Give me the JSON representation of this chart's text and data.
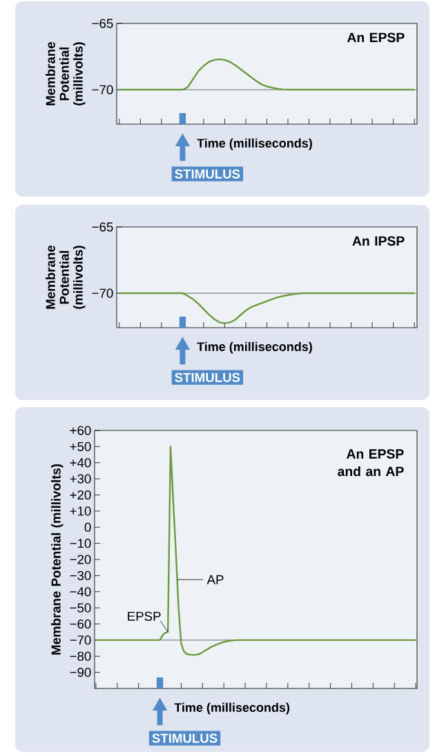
{
  "chart_data": [
    {
      "type": "line",
      "title": "An EPSP",
      "xlabel": "Time (milliseconds)",
      "ylabel": "Membrane Potential (millivolts)",
      "categories": [
        null,
        null,
        null,
        null,
        null,
        null,
        null,
        null,
        null,
        null,
        null,
        null,
        null,
        null,
        null,
        null,
        null,
        null,
        null,
        null,
        null,
        null,
        null,
        null,
        null,
        null,
        null,
        null,
        null,
        null,
        null,
        null,
        null,
        null,
        null,
        null,
        null,
        null,
        null,
        null,
        null,
        null,
        null,
        null,
        null,
        null,
        null,
        null,
        null,
        null,
        null,
        null,
        null,
        null,
        null,
        null,
        null
      ],
      "series": [
        {
          "color": "#6c9a3d",
          "values": [
            -70,
            -70,
            -70,
            -70,
            -70,
            -70,
            -70,
            -70,
            -70,
            -70,
            -70,
            -70,
            -70,
            -69.8,
            -69.2,
            -68.6,
            -68.2,
            -67.9,
            -67.75,
            -67.7,
            -67.75,
            -67.9,
            -68.15,
            -68.45,
            -68.75,
            -69.05,
            -69.35,
            -69.6,
            -69.75,
            -69.85,
            -69.93,
            -69.98,
            -70,
            -70,
            -70,
            -70,
            -70,
            -70,
            -70,
            -70,
            -70,
            -70,
            -70,
            -70,
            -70,
            -70,
            -70,
            -70,
            -70,
            -70,
            -70,
            -70,
            -70,
            -70,
            -70,
            -70,
            -70
          ]
        }
      ],
      "ylim": [
        -72.6,
        -65
      ],
      "yticks": [
        {
          "value": -65,
          "label": "−65"
        },
        {
          "value": -70,
          "label": "−70"
        }
      ],
      "ref_lines": [
        {
          "axis": "y",
          "value": -70,
          "color": "#444444"
        }
      ],
      "tick_labels": "y",
      "annotations": [
        "STIMULUS"
      ]
    },
    {
      "type": "line",
      "title": "An IPSP",
      "xlabel": "Time (milliseconds)",
      "ylabel": "Membrane Potential (millivolts)",
      "categories": [
        null,
        null,
        null,
        null,
        null,
        null,
        null,
        null,
        null,
        null,
        null,
        null,
        null,
        null,
        null,
        null,
        null,
        null,
        null,
        null,
        null,
        null,
        null,
        null,
        null,
        null,
        null,
        null,
        null,
        null,
        null,
        null,
        null,
        null,
        null,
        null,
        null,
        null,
        null,
        null,
        null,
        null,
        null,
        null,
        null,
        null,
        null,
        null,
        null,
        null,
        null,
        null,
        null,
        null,
        null,
        null,
        null
      ],
      "series": [
        {
          "color": "#6c9a3d",
          "values": [
            -70,
            -70,
            -70,
            -70,
            -70,
            -70,
            -70,
            -70,
            -70,
            -70,
            -70,
            -70,
            -70,
            -70.2,
            -70.45,
            -70.8,
            -71.2,
            -71.6,
            -71.95,
            -72.2,
            -72.27,
            -72.2,
            -72.0,
            -71.65,
            -71.3,
            -71.05,
            -70.9,
            -70.75,
            -70.6,
            -70.45,
            -70.32,
            -70.22,
            -70.14,
            -70.08,
            -70.03,
            -70,
            -70,
            -70,
            -70,
            -70,
            -70,
            -70,
            -70,
            -70,
            -70,
            -70,
            -70,
            -70,
            -70,
            -70,
            -70,
            -70,
            -70,
            -70,
            -70,
            -70,
            -70
          ]
        }
      ],
      "ylim": [
        -72.6,
        -65
      ],
      "yticks": [
        {
          "value": -65,
          "label": "−65"
        },
        {
          "value": -70,
          "label": "−70"
        }
      ],
      "ref_lines": [
        {
          "axis": "y",
          "value": -70,
          "color": "#444444"
        }
      ],
      "tick_labels": "y",
      "annotations": [
        "STIMULUS"
      ]
    },
    {
      "type": "line",
      "title": "An EPSP and an AP",
      "xlabel": "Time (milliseconds)",
      "ylabel": "Membrane Potential (millivolts)",
      "categories": [
        null,
        null,
        null,
        null,
        null,
        null,
        null,
        null,
        null,
        null,
        null,
        null,
        null,
        null,
        null,
        null,
        null,
        null,
        null,
        null,
        null,
        null,
        null,
        null,
        null,
        null,
        null,
        null,
        null,
        null,
        null,
        null,
        null,
        null,
        null,
        null,
        null,
        null,
        null,
        null,
        null,
        null,
        null,
        null,
        null,
        null,
        null,
        null,
        null,
        null,
        null,
        null,
        null,
        null,
        null,
        null,
        null,
        null,
        null,
        null,
        null,
        null,
        null,
        null,
        null,
        null,
        null,
        null,
        null,
        null,
        null,
        null,
        null,
        null,
        null,
        null,
        null,
        null,
        null,
        null,
        null,
        null,
        null,
        null,
        null,
        null,
        null,
        null,
        null,
        null,
        null,
        null,
        null,
        null,
        null,
        null,
        null,
        null,
        null,
        null,
        null,
        null,
        null,
        null,
        null,
        null,
        null,
        null,
        null,
        null,
        null,
        null,
        null,
        null,
        null,
        null,
        null,
        null,
        null,
        null,
        null
      ],
      "series": [
        {
          "color": "#6c9a3d",
          "values": [
            -70,
            -70,
            -70,
            -70,
            -70,
            -70,
            -70,
            -70,
            -70,
            -70,
            -70,
            -70,
            -70,
            -70,
            -70,
            -70,
            -70,
            -70,
            -70,
            -70,
            -70,
            -70,
            -70,
            -70,
            -70,
            -67,
            -65.5,
            -65,
            50,
            16,
            -15,
            -50,
            -72,
            -77,
            -78.5,
            -79,
            -79.2,
            -79.2,
            -79,
            -78.5,
            -77.5,
            -76.5,
            -75.5,
            -74.5,
            -73.7,
            -73,
            -72.3,
            -71.7,
            -71.2,
            -70.8,
            -70.5,
            -70.3,
            -70.1,
            -70,
            -70,
            -70,
            -70,
            -70,
            -70,
            -70,
            -70,
            -70,
            -70,
            -70,
            -70,
            -70,
            -70,
            -70,
            -70,
            -70,
            -70,
            -70,
            -70,
            -70,
            -70,
            -70,
            -70,
            -70,
            -70,
            -70,
            -70,
            -70,
            -70,
            -70,
            -70,
            -70,
            -70,
            -70,
            -70,
            -70,
            -70,
            -70,
            -70,
            -70,
            -70,
            -70,
            -70,
            -70,
            -70,
            -70,
            -70,
            -70,
            -70,
            -70,
            -70,
            -70,
            -70,
            -70,
            -70,
            -70,
            -70,
            -70,
            -70,
            -70,
            -70,
            -70,
            -70,
            -70,
            -70,
            -70,
            -70
          ]
        }
      ],
      "ylim": [
        -100,
        60
      ],
      "yticks": [
        {
          "value": 60,
          "label": "+60"
        },
        {
          "value": 50,
          "label": "+50"
        },
        {
          "value": 40,
          "label": "+40"
        },
        {
          "value": 30,
          "label": "+30"
        },
        {
          "value": 20,
          "label": "+20"
        },
        {
          "value": 10,
          "label": "+10"
        },
        0,
        {
          "value": -10,
          "label": "−10"
        },
        {
          "value": -20,
          "label": "−20"
        },
        {
          "value": -30,
          "label": "−30"
        },
        {
          "value": -40,
          "label": "−40"
        },
        {
          "value": -50,
          "label": "−50"
        },
        {
          "value": -60,
          "label": "−60"
        },
        {
          "value": -70,
          "label": "−70"
        },
        {
          "value": -80,
          "label": "−80"
        },
        {
          "value": -90,
          "label": "−90"
        }
      ],
      "ref_lines": [
        {
          "axis": "y",
          "value": -70,
          "color": "#444444"
        }
      ],
      "tick_labels": "y",
      "annotations": [
        "STIMULUS",
        "EPSP",
        "AP"
      ]
    }
  ]
}
